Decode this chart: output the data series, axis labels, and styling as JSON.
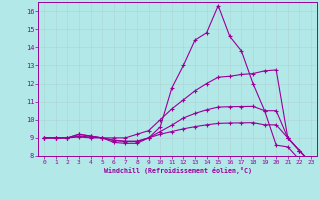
{
  "xlabel": "Windchill (Refroidissement éolien,°C)",
  "background_color": "#b2e8e8",
  "grid_color": "#b0d8d8",
  "line_color": "#990099",
  "xlim": [
    -0.5,
    23.5
  ],
  "ylim": [
    8,
    16.5
  ],
  "yticks": [
    8,
    9,
    10,
    11,
    12,
    13,
    14,
    15,
    16
  ],
  "xticks": [
    0,
    1,
    2,
    3,
    4,
    5,
    6,
    7,
    8,
    9,
    10,
    11,
    12,
    13,
    14,
    15,
    16,
    17,
    18,
    19,
    20,
    21,
    22,
    23
  ],
  "line1_x": [
    0,
    1,
    2,
    3,
    4,
    5,
    6,
    7,
    8,
    9,
    10,
    11,
    12,
    13,
    14,
    15,
    16,
    17,
    18,
    19,
    20,
    21,
    22,
    23
  ],
  "line1_y": [
    9.0,
    9.0,
    9.0,
    9.2,
    9.1,
    9.0,
    8.75,
    8.7,
    8.7,
    9.0,
    9.6,
    11.75,
    13.0,
    14.4,
    14.8,
    16.3,
    14.6,
    13.8,
    12.0,
    10.5,
    8.6,
    8.5,
    7.8,
    7.6
  ],
  "line2_x": [
    0,
    1,
    2,
    3,
    4,
    5,
    6,
    7,
    8,
    9,
    10,
    11,
    12,
    13,
    14,
    15,
    16,
    17,
    18,
    19,
    20,
    21,
    22,
    23
  ],
  "line2_y": [
    9.0,
    9.0,
    9.0,
    9.2,
    9.1,
    9.0,
    9.0,
    9.0,
    9.2,
    9.4,
    10.0,
    10.6,
    11.1,
    11.6,
    12.0,
    12.35,
    12.4,
    12.5,
    12.55,
    12.7,
    12.75,
    9.0,
    8.3,
    7.6
  ],
  "line3_x": [
    0,
    1,
    2,
    3,
    4,
    5,
    6,
    7,
    8,
    9,
    10,
    11,
    12,
    13,
    14,
    15,
    16,
    17,
    18,
    19,
    20,
    21,
    22,
    23
  ],
  "line3_y": [
    9.0,
    9.0,
    9.0,
    9.1,
    9.05,
    9.0,
    8.85,
    8.8,
    8.8,
    9.0,
    9.35,
    9.7,
    10.1,
    10.35,
    10.55,
    10.7,
    10.72,
    10.73,
    10.74,
    10.5,
    10.5,
    9.0,
    8.3,
    7.6
  ],
  "line4_x": [
    0,
    1,
    2,
    3,
    4,
    5,
    6,
    7,
    8,
    9,
    10,
    11,
    12,
    13,
    14,
    15,
    16,
    17,
    18,
    19,
    20,
    21,
    22,
    23
  ],
  "line4_y": [
    9.0,
    9.0,
    9.0,
    9.05,
    9.0,
    9.0,
    8.88,
    8.82,
    8.82,
    9.0,
    9.2,
    9.35,
    9.5,
    9.62,
    9.72,
    9.8,
    9.82,
    9.83,
    9.84,
    9.72,
    9.72,
    9.0,
    8.3,
    7.6
  ]
}
